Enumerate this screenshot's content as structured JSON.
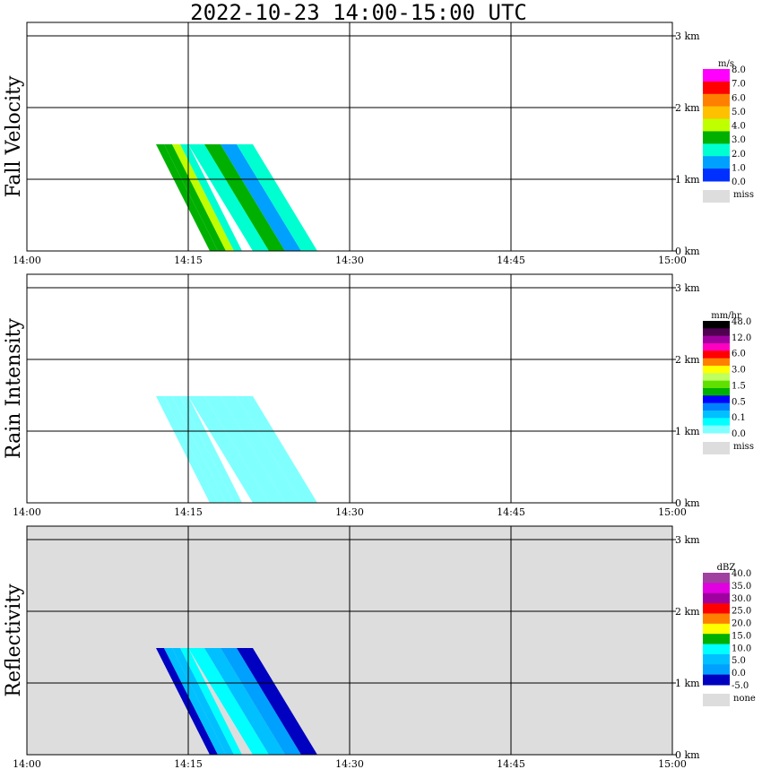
{
  "title": "2022-10-23   14:00-15:00 UTC",
  "chart_data": [
    {
      "type": "heatmap",
      "ylabel": "Fall Velocity",
      "x_ticks": [
        "14:00",
        "14:15",
        "14:30",
        "14:45",
        "15:00"
      ],
      "y_ticks": [
        "0 km",
        "1 km",
        "2 km",
        "3 km"
      ],
      "xlim": [
        "14:00",
        "15:00"
      ],
      "ylim_km": [
        0,
        3.0
      ],
      "background": "#ffffff",
      "colorbar": {
        "unit": "m/s",
        "labels": [
          "8.0",
          "7.0",
          "6.0",
          "5.0",
          "4.0",
          "3.0",
          "2.0",
          "1.0",
          "0.0"
        ],
        "colors": [
          "#ff00ff",
          "#ff0000",
          "#ff8000",
          "#ffc000",
          "#c0ff00",
          "#00b000",
          "#00ffd0",
          "#00a0ff",
          "#0030ff"
        ],
        "missing_label": "miss"
      },
      "features": [
        {
          "time_start": 14.2,
          "time_end": 14.25,
          "top_km": 1.4,
          "bottom_km": 0.0,
          "tilt_min": 5,
          "colors": [
            "#00b000",
            "#00b000",
            "#c0ff00",
            "#00ffd0"
          ]
        },
        {
          "time_start": 14.25,
          "time_end": 14.35,
          "top_km": 1.4,
          "bottom_km": 0.0,
          "tilt_min": 6,
          "colors": [
            "#00ffd0",
            "#00b000",
            "#00a0ff",
            "#00ffd0"
          ]
        }
      ]
    },
    {
      "type": "heatmap",
      "ylabel": "Rain Intensity",
      "x_ticks": [
        "14:00",
        "14:15",
        "14:30",
        "14:45",
        "15:00"
      ],
      "y_ticks": [
        "0 km",
        "1 km",
        "2 km",
        "3 km"
      ],
      "xlim": [
        "14:00",
        "15:00"
      ],
      "ylim_km": [
        0,
        3.0
      ],
      "background": "#ffffff",
      "colorbar": {
        "unit": "mm/hr",
        "labels": [
          "48.0",
          "12.0",
          "6.0",
          "3.0",
          "1.5",
          "0.5",
          "0.1",
          "0.0"
        ],
        "colors": [
          "#000000",
          "#500050",
          "#a000a0",
          "#ff00c0",
          "#ff0000",
          "#ff8000",
          "#ffff00",
          "#c0ff60",
          "#60e000",
          "#00b000",
          "#0000ff",
          "#0080ff",
          "#00c0ff",
          "#00ffff",
          "#80ffff"
        ],
        "missing_label": "miss"
      },
      "features": [
        {
          "time_start": 14.2,
          "time_end": 14.25,
          "top_km": 1.4,
          "bottom_km": 0.0,
          "tilt_min": 5,
          "colors": [
            "#80ffff",
            "#80ffff",
            "#80ffff",
            "#80ffff"
          ]
        },
        {
          "time_start": 14.25,
          "time_end": 14.35,
          "top_km": 1.4,
          "bottom_km": 0.0,
          "tilt_min": 6,
          "colors": [
            "#80ffff",
            "#80ffff",
            "#80ffff",
            "#80ffff"
          ]
        }
      ]
    },
    {
      "type": "heatmap",
      "ylabel": "Reflectivity",
      "x_ticks": [
        "14:00",
        "14:15",
        "14:30",
        "14:45",
        "15:00"
      ],
      "y_ticks": [
        "0 km",
        "1 km",
        "2 km",
        "3 km"
      ],
      "xlim": [
        "14:00",
        "15:00"
      ],
      "ylim_km": [
        0,
        3.0
      ],
      "background": "#dddddd",
      "colorbar": {
        "unit": "dBZ",
        "labels": [
          "40.0",
          "35.0",
          "30.0",
          "25.0",
          "20.0",
          "15.0",
          "10.0",
          "5.0",
          "0.0",
          "-5.0"
        ],
        "colors": [
          "#a040a0",
          "#e000e0",
          "#a000a0",
          "#ff0000",
          "#ff8000",
          "#ffff00",
          "#00b000",
          "#00ffff",
          "#00c0ff",
          "#00a0ff",
          "#0000c0"
        ],
        "missing_label": "none"
      },
      "features": [
        {
          "time_start": 14.2,
          "time_end": 14.25,
          "top_km": 1.4,
          "bottom_km": 0.0,
          "tilt_min": 5,
          "colors": [
            "#0000c0",
            "#00c0ff",
            "#00c0ff",
            "#00ffff"
          ]
        },
        {
          "time_start": 14.25,
          "time_end": 14.35,
          "top_km": 1.4,
          "bottom_km": 0.0,
          "tilt_min": 6,
          "colors": [
            "#00ffff",
            "#00c0ff",
            "#00a0ff",
            "#0000c0"
          ]
        }
      ]
    }
  ]
}
